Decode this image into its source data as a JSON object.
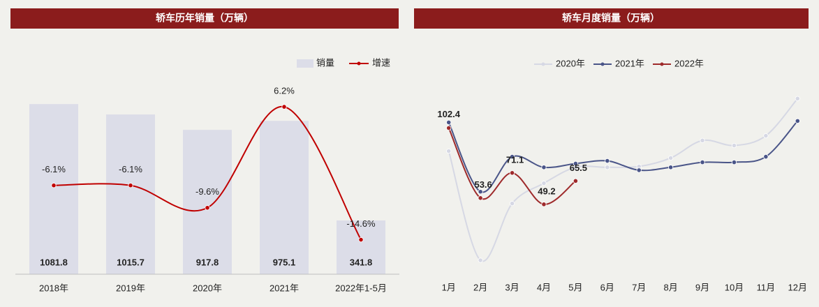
{
  "chart_data": [
    {
      "type": "bar",
      "title": "轿车历年销量（万辆）",
      "categories": [
        "2018年",
        "2019年",
        "2020年",
        "2021年",
        "2022年1-5月"
      ],
      "series": [
        {
          "name": "销量",
          "color": "#dcdde8",
          "values": [
            1081.8,
            1015.7,
            917.8,
            975.1,
            341.8
          ]
        },
        {
          "name": "增速",
          "color": "#c00000",
          "axis": "y2",
          "values": [
            -6.1,
            -6.1,
            -9.6,
            6.2,
            -14.6
          ],
          "value_labels": [
            "-6.1%",
            "-6.1%",
            "-9.6%",
            "6.2%",
            "-14.6%"
          ]
        }
      ],
      "ylim": [
        0,
        1300
      ],
      "y2lim": [
        -20,
        12
      ]
    },
    {
      "type": "line",
      "title": "轿车月度销量（万辆）",
      "categories": [
        "1月",
        "2月",
        "3月",
        "4月",
        "5月",
        "6月",
        "7月",
        "8月",
        "9月",
        "10月",
        "11月",
        "12月"
      ],
      "series": [
        {
          "name": "2020年",
          "color": "#d6d8e4",
          "values": [
            86.3,
            10.2,
            49.8,
            63.9,
            75,
            75,
            75.6,
            81.5,
            93.7,
            90.2,
            97,
            122.9
          ]
        },
        {
          "name": "2021年",
          "color": "#4a5588",
          "values": [
            106.3,
            58,
            82.4,
            75,
            77.6,
            79.5,
            73,
            75,
            78.5,
            78.5,
            82.4,
            107.3
          ]
        },
        {
          "name": "2022年",
          "color": "#9e2a2b",
          "values": [
            102.4,
            53.6,
            71.1,
            49.2,
            65.5,
            null,
            null,
            null,
            null,
            null,
            null,
            null
          ],
          "show_labels": true
        }
      ],
      "ylim": [
        0,
        143
      ]
    }
  ]
}
